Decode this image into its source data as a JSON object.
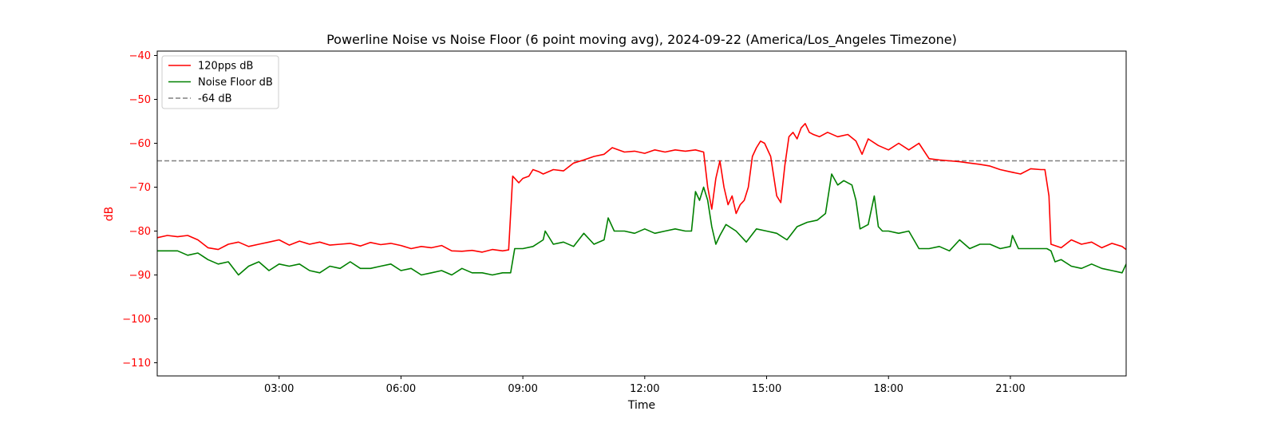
{
  "chart_data": {
    "type": "line",
    "title": "Powerline Noise vs Noise Floor (6 point moving avg), 2024-09-22 (America/Los_Angeles Timezone)",
    "xlabel": "Time",
    "ylabel": "dB",
    "x_unit": "hour of day",
    "xlim": [
      0.0,
      23.85
    ],
    "ylim": [
      -113,
      -39
    ],
    "xticks": [
      {
        "value": 3,
        "label": "03:00"
      },
      {
        "value": 6,
        "label": "06:00"
      },
      {
        "value": 9,
        "label": "09:00"
      },
      {
        "value": 12,
        "label": "12:00"
      },
      {
        "value": 15,
        "label": "15:00"
      },
      {
        "value": 18,
        "label": "18:00"
      },
      {
        "value": 21,
        "label": "21:00"
      }
    ],
    "yticks": [
      {
        "value": -40,
        "label": "−40"
      },
      {
        "value": -50,
        "label": "−50"
      },
      {
        "value": -60,
        "label": "−60"
      },
      {
        "value": -70,
        "label": "−70"
      },
      {
        "value": -80,
        "label": "−80"
      },
      {
        "value": -90,
        "label": "−90"
      },
      {
        "value": -100,
        "label": "−100"
      },
      {
        "value": -110,
        "label": "−110"
      }
    ],
    "ytick_color": "#ff0000",
    "grid": false,
    "legend_position": "top-left",
    "series": [
      {
        "name": "120pps dB",
        "color": "#ff0000",
        "style": "solid",
        "x": [
          0.0,
          0.25,
          0.5,
          0.75,
          1.0,
          1.25,
          1.5,
          1.75,
          2.0,
          2.25,
          2.5,
          2.75,
          3.0,
          3.25,
          3.5,
          3.75,
          4.0,
          4.25,
          4.5,
          4.75,
          5.0,
          5.25,
          5.5,
          5.75,
          6.0,
          6.25,
          6.5,
          6.75,
          7.0,
          7.25,
          7.5,
          7.75,
          8.0,
          8.25,
          8.5,
          8.65,
          8.75,
          8.9,
          9.0,
          9.15,
          9.25,
          9.4,
          9.5,
          9.75,
          10.0,
          10.25,
          10.5,
          10.75,
          11.0,
          11.2,
          11.5,
          11.75,
          12.0,
          12.25,
          12.5,
          12.75,
          13.0,
          13.25,
          13.45,
          13.55,
          13.65,
          13.75,
          13.85,
          13.95,
          14.05,
          14.15,
          14.25,
          14.35,
          14.45,
          14.55,
          14.65,
          14.75,
          14.85,
          14.95,
          15.1,
          15.25,
          15.35,
          15.45,
          15.55,
          15.65,
          15.75,
          15.85,
          15.95,
          16.05,
          16.15,
          16.3,
          16.5,
          16.75,
          17.0,
          17.2,
          17.35,
          17.5,
          17.75,
          18.0,
          18.25,
          18.5,
          18.75,
          19.0,
          19.25,
          19.5,
          19.75,
          20.0,
          20.25,
          20.5,
          20.75,
          21.0,
          21.25,
          21.5,
          21.75,
          21.85,
          21.95,
          22.0,
          22.25,
          22.5,
          22.75,
          23.0,
          23.25,
          23.5,
          23.75,
          23.85
        ],
        "y": [
          -81.5,
          -81.0,
          -81.3,
          -81.0,
          -82.0,
          -83.8,
          -84.2,
          -83.0,
          -82.5,
          -83.5,
          -83.0,
          -82.5,
          -82.0,
          -83.2,
          -82.3,
          -83.0,
          -82.5,
          -83.2,
          -83.0,
          -82.8,
          -83.4,
          -82.6,
          -83.1,
          -82.8,
          -83.3,
          -84.0,
          -83.5,
          -83.8,
          -83.3,
          -84.5,
          -84.6,
          -84.4,
          -84.8,
          -84.2,
          -84.5,
          -84.3,
          -67.5,
          -69.0,
          -68.0,
          -67.5,
          -66.0,
          -66.5,
          -67.0,
          -66.0,
          -66.3,
          -64.5,
          -63.8,
          -63.0,
          -62.5,
          -61.0,
          -62.0,
          -61.8,
          -62.3,
          -61.5,
          -62.0,
          -61.5,
          -61.8,
          -61.5,
          -62.0,
          -70.0,
          -75.0,
          -68.0,
          -64.0,
          -70.0,
          -74.0,
          -72.0,
          -76.0,
          -74.0,
          -73.0,
          -70.0,
          -63.0,
          -61.0,
          -59.5,
          -60.0,
          -63.0,
          -72.0,
          -73.5,
          -65.0,
          -58.5,
          -57.5,
          -59.0,
          -56.5,
          -55.5,
          -57.5,
          -58.0,
          -58.5,
          -57.5,
          -58.5,
          -58.0,
          -59.5,
          -62.5,
          -59.0,
          -60.5,
          -61.5,
          -60.0,
          -61.5,
          -60.0,
          -63.5,
          -63.8,
          -64.0,
          -64.2,
          -64.5,
          -64.8,
          -65.2,
          -66.0,
          -66.5,
          -67.0,
          -65.8,
          -66.0,
          -66.0,
          -72.0,
          -83.0,
          -83.8,
          -82.0,
          -83.0,
          -82.5,
          -83.8,
          -82.8,
          -83.5,
          -84.2
        ]
      },
      {
        "name": "Noise Floor dB",
        "color": "#008000",
        "style": "solid",
        "x": [
          0.0,
          0.25,
          0.5,
          0.75,
          1.0,
          1.25,
          1.5,
          1.75,
          2.0,
          2.25,
          2.5,
          2.75,
          3.0,
          3.25,
          3.5,
          3.75,
          4.0,
          4.25,
          4.5,
          4.75,
          5.0,
          5.25,
          5.5,
          5.75,
          6.0,
          6.25,
          6.5,
          6.75,
          7.0,
          7.25,
          7.5,
          7.75,
          8.0,
          8.25,
          8.5,
          8.7,
          8.8,
          9.0,
          9.25,
          9.5,
          9.55,
          9.75,
          10.0,
          10.25,
          10.5,
          10.75,
          11.0,
          11.1,
          11.25,
          11.5,
          11.75,
          12.0,
          12.25,
          12.5,
          12.75,
          13.0,
          13.15,
          13.25,
          13.35,
          13.45,
          13.55,
          13.65,
          13.75,
          13.85,
          14.0,
          14.25,
          14.5,
          14.75,
          15.0,
          15.25,
          15.5,
          15.75,
          16.0,
          16.25,
          16.45,
          16.6,
          16.75,
          16.9,
          17.1,
          17.2,
          17.3,
          17.5,
          17.65,
          17.75,
          17.85,
          18.0,
          18.25,
          18.5,
          18.75,
          19.0,
          19.25,
          19.5,
          19.75,
          20.0,
          20.25,
          20.5,
          20.75,
          21.0,
          21.05,
          21.2,
          21.5,
          21.75,
          21.9,
          22.0,
          22.1,
          22.25,
          22.5,
          22.75,
          23.0,
          23.25,
          23.5,
          23.75,
          23.85
        ],
        "y": [
          -84.5,
          -84.5,
          -84.5,
          -85.5,
          -85.0,
          -86.5,
          -87.5,
          -87.0,
          -90.0,
          -88.0,
          -87.0,
          -89.0,
          -87.5,
          -88.0,
          -87.5,
          -89.0,
          -89.5,
          -88.0,
          -88.5,
          -87.0,
          -88.5,
          -88.5,
          -88.0,
          -87.5,
          -89.0,
          -88.5,
          -90.0,
          -89.5,
          -89.0,
          -90.0,
          -88.5,
          -89.5,
          -89.5,
          -90.0,
          -89.5,
          -89.5,
          -84.0,
          -84.0,
          -83.5,
          -82.0,
          -80.0,
          -83.0,
          -82.5,
          -83.5,
          -80.5,
          -83.0,
          -82.0,
          -77.0,
          -80.0,
          -80.0,
          -80.5,
          -79.5,
          -80.5,
          -80.0,
          -79.5,
          -80.0,
          -80.0,
          -71.0,
          -73.0,
          -70.0,
          -73.0,
          -79.0,
          -83.0,
          -81.0,
          -78.5,
          -80.0,
          -82.5,
          -79.5,
          -80.0,
          -80.5,
          -82.0,
          -79.0,
          -78.0,
          -77.5,
          -76.0,
          -67.0,
          -69.5,
          -68.5,
          -69.5,
          -73.0,
          -79.5,
          -78.5,
          -72.0,
          -79.0,
          -80.0,
          -80.0,
          -80.5,
          -80.0,
          -84.0,
          -84.0,
          -83.5,
          -84.5,
          -82.0,
          -84.0,
          -83.0,
          -83.0,
          -84.0,
          -83.5,
          -81.0,
          -84.0,
          -84.0,
          -84.0,
          -84.0,
          -84.5,
          -87.0,
          -86.5,
          -88.0,
          -88.5,
          -87.5,
          -88.5,
          -89.0,
          -89.5,
          -87.5
        ]
      },
      {
        "name": "-64 dB",
        "color": "#808080",
        "style": "dashed",
        "x": [
          0.0,
          23.85
        ],
        "y": [
          -64,
          -64
        ]
      }
    ]
  }
}
